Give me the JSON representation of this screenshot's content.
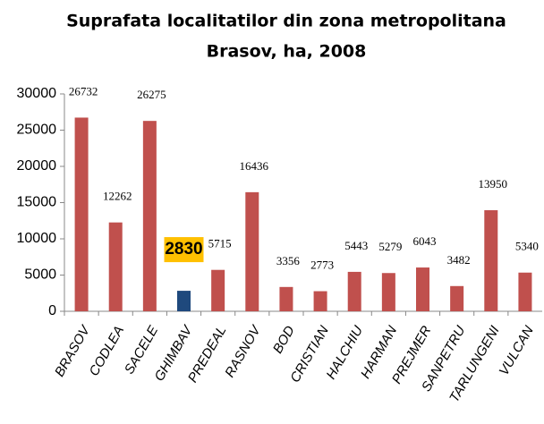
{
  "chart_data": {
    "type": "bar",
    "title": [
      "Suprafata localitatilor din zona metropolitana",
      "Brasov, ha, 2008"
    ],
    "categories": [
      "BRASOV",
      "CODLEA",
      "SACELE",
      "GHIMBAV",
      "PREDEAL",
      "RASNOV",
      "BOD",
      "CRISTIAN",
      "HALCHIU",
      "HARMAN",
      "PREJMER",
      "SANPETRU",
      "TARLUNGENI",
      "VULCAN"
    ],
    "values": [
      26732,
      12262,
      26275,
      2830,
      5715,
      16436,
      3356,
      2773,
      5443,
      5279,
      6043,
      3482,
      13950,
      5340
    ],
    "colors": [
      "#c0504d",
      "#c0504d",
      "#c0504d",
      "#1f497d",
      "#c0504d",
      "#c0504d",
      "#c0504d",
      "#c0504d",
      "#c0504d",
      "#c0504d",
      "#c0504d",
      "#c0504d",
      "#c0504d",
      "#c0504d"
    ],
    "ylim": [
      0,
      30000
    ],
    "yticks": [
      0,
      5000,
      10000,
      15000,
      20000,
      25000,
      30000
    ],
    "grid": false
  }
}
